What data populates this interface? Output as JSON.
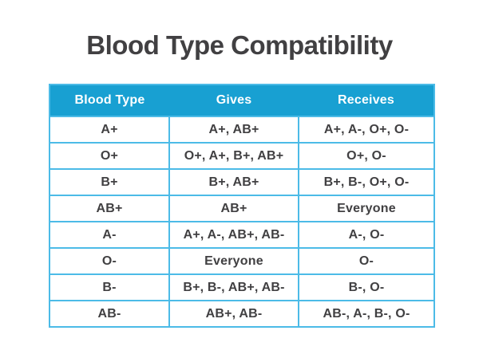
{
  "title": "Blood Type Compatibility",
  "colors": {
    "header_bg": "#18a0d2",
    "border": "#4cbbe7",
    "text": "#414042",
    "header_text": "#ffffff"
  },
  "table": {
    "headers": [
      "Blood Type",
      "Gives",
      "Receives"
    ],
    "rows": [
      [
        "A+",
        "A+, AB+",
        "A+, A-, O+, O-"
      ],
      [
        "O+",
        "O+, A+, B+, AB+",
        "O+, O-"
      ],
      [
        "B+",
        "B+, AB+",
        "B+, B-, O+, O-"
      ],
      [
        "AB+",
        "AB+",
        "Everyone"
      ],
      [
        "A-",
        "A+, A-, AB+, AB-",
        "A-, O-"
      ],
      [
        "O-",
        "Everyone",
        "O-"
      ],
      [
        "B-",
        "B+, B-, AB+, AB-",
        "B-, O-"
      ],
      [
        "AB-",
        "AB+, AB-",
        "AB-, A-, B-, O-"
      ]
    ]
  },
  "chart_data": {
    "type": "table",
    "title": "Blood Type Compatibility",
    "columns": [
      "Blood Type",
      "Gives",
      "Receives"
    ],
    "rows": [
      {
        "blood_type": "A+",
        "gives": "A+, AB+",
        "receives": "A+, A-, O+, O-"
      },
      {
        "blood_type": "O+",
        "gives": "O+, A+, B+, AB+",
        "receives": "O+, O-"
      },
      {
        "blood_type": "B+",
        "gives": "B+, AB+",
        "receives": "B+, B-, O+, O-"
      },
      {
        "blood_type": "AB+",
        "gives": "AB+",
        "receives": "Everyone"
      },
      {
        "blood_type": "A-",
        "gives": "A+, A-, AB+, AB-",
        "receives": "A-, O-"
      },
      {
        "blood_type": "O-",
        "gives": "Everyone",
        "receives": "O-"
      },
      {
        "blood_type": "B-",
        "gives": "B+, B-, AB+, AB-",
        "receives": "B-, O-"
      },
      {
        "blood_type": "AB-",
        "gives": "AB+, AB-",
        "receives": "AB-, A-, B-, O-"
      }
    ]
  }
}
